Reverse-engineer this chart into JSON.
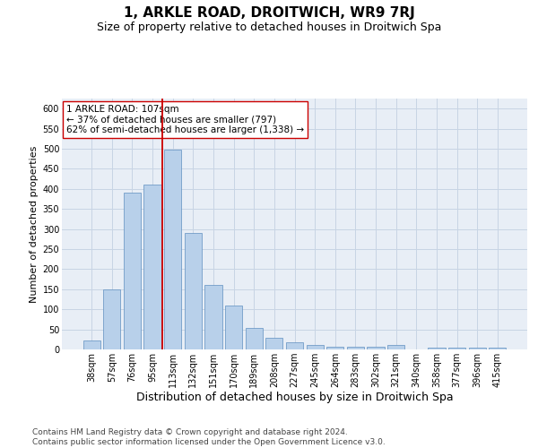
{
  "title": "1, ARKLE ROAD, DROITWICH, WR9 7RJ",
  "subtitle": "Size of property relative to detached houses in Droitwich Spa",
  "xlabel": "Distribution of detached houses by size in Droitwich Spa",
  "ylabel": "Number of detached properties",
  "categories": [
    "38sqm",
    "57sqm",
    "76sqm",
    "95sqm",
    "113sqm",
    "132sqm",
    "151sqm",
    "170sqm",
    "189sqm",
    "208sqm",
    "227sqm",
    "245sqm",
    "264sqm",
    "283sqm",
    "302sqm",
    "321sqm",
    "340sqm",
    "358sqm",
    "377sqm",
    "396sqm",
    "415sqm"
  ],
  "values": [
    22,
    150,
    390,
    410,
    498,
    290,
    160,
    110,
    54,
    29,
    17,
    11,
    6,
    7,
    7,
    11,
    0,
    4,
    4,
    5,
    4
  ],
  "bar_color": "#b8d0ea",
  "bar_edge_color": "#6090c0",
  "grid_color": "#c8d4e4",
  "background_color": "#e8eef6",
  "vline_color": "#cc0000",
  "annotation_text": "1 ARKLE ROAD: 107sqm\n← 37% of detached houses are smaller (797)\n62% of semi-detached houses are larger (1,338) →",
  "annotation_box_facecolor": "#ffffff",
  "annotation_box_edgecolor": "#cc0000",
  "ylim_max": 625,
  "yticks": [
    0,
    50,
    100,
    150,
    200,
    250,
    300,
    350,
    400,
    450,
    500,
    550,
    600
  ],
  "footer_line1": "Contains HM Land Registry data © Crown copyright and database right 2024.",
  "footer_line2": "Contains public sector information licensed under the Open Government Licence v3.0.",
  "title_fontsize": 11,
  "subtitle_fontsize": 9,
  "xlabel_fontsize": 9,
  "ylabel_fontsize": 8,
  "tick_fontsize": 7,
  "annotation_fontsize": 7.5,
  "footer_fontsize": 6.5
}
